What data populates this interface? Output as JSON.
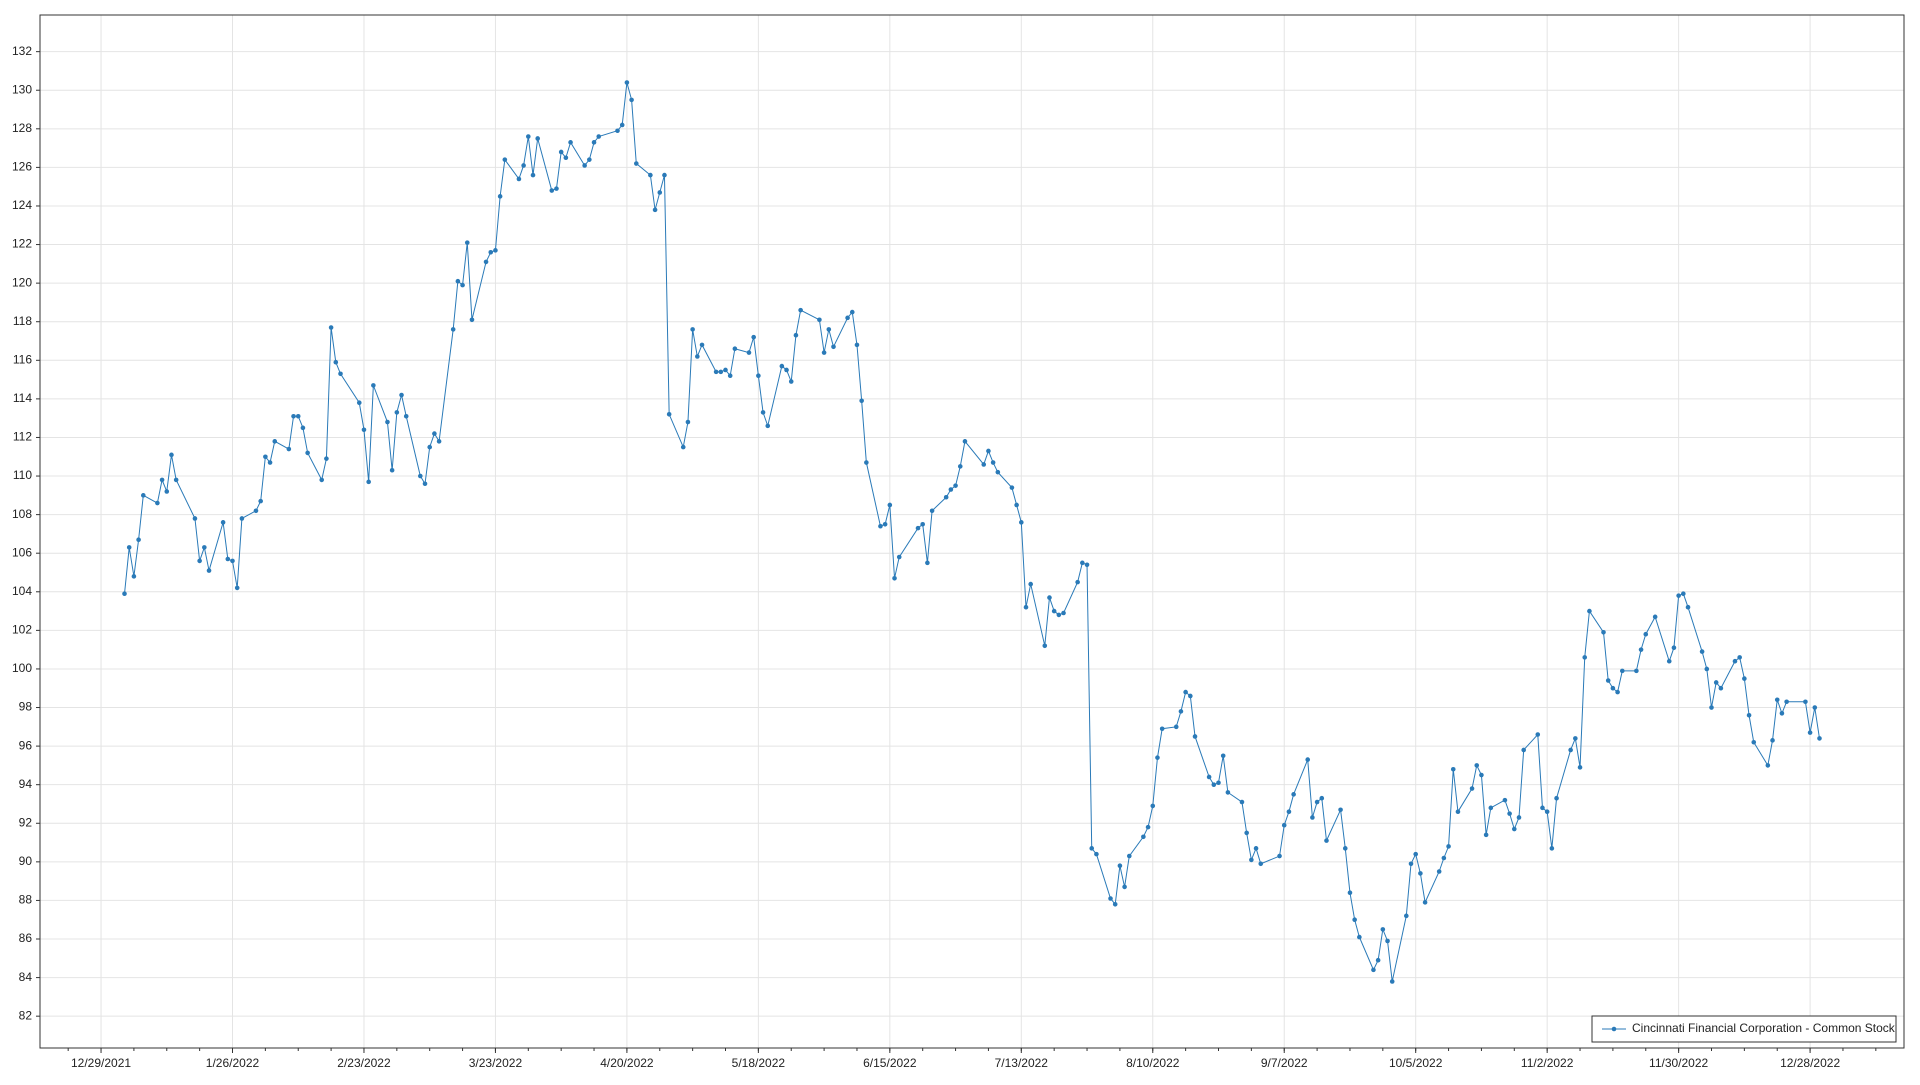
{
  "chart_data": {
    "type": "line",
    "x": [
      "1/3/2022",
      "1/4/2022",
      "1/5/2022",
      "1/6/2022",
      "1/7/2022",
      "1/10/2022",
      "1/11/2022",
      "1/12/2022",
      "1/13/2022",
      "1/14/2022",
      "1/18/2022",
      "1/19/2022",
      "1/20/2022",
      "1/21/2022",
      "1/24/2022",
      "1/25/2022",
      "1/26/2022",
      "1/27/2022",
      "1/28/2022",
      "1/31/2022",
      "2/1/2022",
      "2/2/2022",
      "2/3/2022",
      "2/4/2022",
      "2/7/2022",
      "2/8/2022",
      "2/9/2022",
      "2/10/2022",
      "2/11/2022",
      "2/14/2022",
      "2/15/2022",
      "2/16/2022",
      "2/17/2022",
      "2/18/2022",
      "2/22/2022",
      "2/23/2022",
      "2/24/2022",
      "2/25/2022",
      "2/28/2022",
      "3/1/2022",
      "3/2/2022",
      "3/3/2022",
      "3/4/2022",
      "3/7/2022",
      "3/8/2022",
      "3/9/2022",
      "3/10/2022",
      "3/11/2022",
      "3/14/2022",
      "3/15/2022",
      "3/16/2022",
      "3/17/2022",
      "3/18/2022",
      "3/21/2022",
      "3/22/2022",
      "3/23/2022",
      "3/24/2022",
      "3/25/2022",
      "3/28/2022",
      "3/29/2022",
      "3/30/2022",
      "3/31/2022",
      "4/1/2022",
      "4/4/2022",
      "4/5/2022",
      "4/6/2022",
      "4/7/2022",
      "4/8/2022",
      "4/11/2022",
      "4/12/2022",
      "4/13/2022",
      "4/14/2022",
      "4/18/2022",
      "4/19/2022",
      "4/20/2022",
      "4/21/2022",
      "4/22/2022",
      "4/25/2022",
      "4/26/2022",
      "4/27/2022",
      "4/28/2022",
      "4/29/2022",
      "5/2/2022",
      "5/3/2022",
      "5/4/2022",
      "5/5/2022",
      "5/6/2022",
      "5/9/2022",
      "5/10/2022",
      "5/11/2022",
      "5/12/2022",
      "5/13/2022",
      "5/16/2022",
      "5/17/2022",
      "5/18/2022",
      "5/19/2022",
      "5/20/2022",
      "5/23/2022",
      "5/24/2022",
      "5/25/2022",
      "5/26/2022",
      "5/27/2022",
      "5/31/2022",
      "6/1/2022",
      "6/2/2022",
      "6/3/2022",
      "6/6/2022",
      "6/7/2022",
      "6/8/2022",
      "6/9/2022",
      "6/10/2022",
      "6/13/2022",
      "6/14/2022",
      "6/15/2022",
      "6/16/2022",
      "6/17/2022",
      "6/21/2022",
      "6/22/2022",
      "6/23/2022",
      "6/24/2022",
      "6/27/2022",
      "6/28/2022",
      "6/29/2022",
      "6/30/2022",
      "7/1/2022",
      "7/5/2022",
      "7/6/2022",
      "7/7/2022",
      "7/8/2022",
      "7/11/2022",
      "7/12/2022",
      "7/13/2022",
      "7/14/2022",
      "7/15/2022",
      "7/18/2022",
      "7/19/2022",
      "7/20/2022",
      "7/21/2022",
      "7/22/2022",
      "7/25/2022",
      "7/26/2022",
      "7/27/2022",
      "7/28/2022",
      "7/29/2022",
      "8/1/2022",
      "8/2/2022",
      "8/3/2022",
      "8/4/2022",
      "8/5/2022",
      "8/8/2022",
      "8/9/2022",
      "8/10/2022",
      "8/11/2022",
      "8/12/2022",
      "8/15/2022",
      "8/16/2022",
      "8/17/2022",
      "8/18/2022",
      "8/19/2022",
      "8/22/2022",
      "8/23/2022",
      "8/24/2022",
      "8/25/2022",
      "8/26/2022",
      "8/29/2022",
      "8/30/2022",
      "8/31/2022",
      "9/1/2022",
      "9/2/2022",
      "9/6/2022",
      "9/7/2022",
      "9/8/2022",
      "9/9/2022",
      "9/12/2022",
      "9/13/2022",
      "9/14/2022",
      "9/15/2022",
      "9/16/2022",
      "9/19/2022",
      "9/20/2022",
      "9/21/2022",
      "9/22/2022",
      "9/23/2022",
      "9/26/2022",
      "9/27/2022",
      "9/28/2022",
      "9/29/2022",
      "9/30/2022",
      "10/3/2022",
      "10/4/2022",
      "10/5/2022",
      "10/6/2022",
      "10/7/2022",
      "10/10/2022",
      "10/11/2022",
      "10/12/2022",
      "10/13/2022",
      "10/14/2022",
      "10/17/2022",
      "10/18/2022",
      "10/19/2022",
      "10/20/2022",
      "10/21/2022",
      "10/24/2022",
      "10/25/2022",
      "10/26/2022",
      "10/27/2022",
      "10/28/2022",
      "10/31/2022",
      "11/1/2022",
      "11/2/2022",
      "11/3/2022",
      "11/4/2022",
      "11/7/2022",
      "11/8/2022",
      "11/9/2022",
      "11/10/2022",
      "11/11/2022",
      "11/14/2022",
      "11/15/2022",
      "11/16/2022",
      "11/17/2022",
      "11/18/2022",
      "11/21/2022",
      "11/22/2022",
      "11/23/2022",
      "11/25/2022",
      "11/28/2022",
      "11/29/2022",
      "11/30/2022",
      "12/1/2022",
      "12/2/2022",
      "12/5/2022",
      "12/6/2022",
      "12/7/2022",
      "12/8/2022",
      "12/9/2022",
      "12/12/2022",
      "12/13/2022",
      "12/14/2022",
      "12/15/2022",
      "12/16/2022",
      "12/19/2022",
      "12/20/2022",
      "12/21/2022",
      "12/22/2022",
      "12/23/2022",
      "12/27/2022",
      "12/28/2022",
      "12/29/2022",
      "12/30/2022"
    ],
    "series": [
      {
        "name": "Cincinnati Financial Corporation - Common Stock",
        "color": "#2a7ab8",
        "values": [
          103.9,
          106.3,
          104.8,
          106.7,
          109.0,
          108.6,
          109.8,
          109.2,
          111.1,
          109.8,
          107.8,
          105.6,
          106.3,
          105.1,
          107.6,
          105.7,
          105.6,
          104.2,
          107.8,
          108.2,
          108.7,
          111.0,
          110.7,
          111.8,
          111.4,
          113.1,
          113.1,
          112.5,
          111.2,
          109.8,
          110.9,
          117.7,
          115.9,
          115.3,
          113.8,
          112.4,
          109.7,
          114.7,
          112.8,
          110.3,
          113.3,
          114.2,
          113.1,
          110.0,
          109.6,
          111.5,
          112.2,
          111.8,
          117.6,
          120.1,
          119.9,
          122.1,
          118.1,
          121.1,
          121.6,
          121.7,
          124.5,
          126.4,
          125.4,
          126.1,
          127.6,
          125.6,
          127.5,
          124.8,
          124.9,
          126.8,
          126.5,
          127.3,
          126.1,
          126.4,
          127.3,
          127.6,
          127.9,
          128.2,
          130.4,
          129.5,
          126.2,
          125.6,
          123.8,
          124.7,
          125.6,
          113.2,
          111.5,
          112.8,
          117.6,
          116.2,
          116.8,
          115.4,
          115.4,
          115.5,
          115.2,
          116.6,
          116.4,
          117.2,
          115.2,
          113.3,
          112.6,
          115.7,
          115.5,
          114.9,
          117.3,
          118.6,
          118.1,
          116.4,
          117.6,
          116.7,
          118.2,
          118.5,
          116.8,
          113.9,
          110.7,
          107.4,
          107.5,
          108.5,
          104.7,
          105.8,
          107.3,
          107.5,
          105.5,
          108.2,
          108.9,
          109.3,
          109.5,
          110.5,
          111.8,
          110.6,
          111.3,
          110.7,
          110.2,
          109.4,
          108.5,
          107.6,
          103.2,
          104.4,
          101.2,
          103.7,
          103.0,
          102.8,
          102.9,
          104.5,
          105.5,
          105.4,
          90.7,
          90.4,
          88.1,
          87.8,
          89.8,
          88.7,
          90.3,
          91.3,
          91.8,
          92.9,
          95.4,
          96.9,
          97.0,
          97.8,
          98.8,
          98.6,
          96.5,
          94.4,
          94.0,
          94.1,
          95.5,
          93.6,
          93.1,
          91.5,
          90.1,
          90.7,
          89.9,
          90.3,
          91.9,
          92.6,
          93.5,
          95.3,
          92.3,
          93.1,
          93.3,
          91.1,
          92.7,
          90.7,
          88.4,
          87.0,
          86.1,
          84.4,
          84.9,
          86.5,
          85.9,
          83.8,
          87.2,
          89.9,
          90.4,
          89.4,
          87.9,
          89.5,
          90.2,
          90.8,
          94.8,
          92.6,
          93.8,
          95.0,
          94.5,
          91.4,
          92.8,
          93.2,
          92.5,
          91.7,
          92.3,
          95.8,
          96.6,
          92.8,
          92.6,
          90.7,
          93.3,
          95.8,
          96.4,
          94.9,
          100.6,
          103.0,
          101.9,
          99.4,
          99.0,
          98.8,
          99.9,
          99.9,
          101.0,
          101.8,
          102.7,
          100.4,
          101.1,
          103.8,
          103.9,
          103.2,
          100.9,
          100.0,
          98.0,
          99.3,
          99.0,
          100.4,
          100.6,
          99.5,
          97.6,
          96.2,
          95.0,
          96.3,
          98.4,
          97.7,
          98.3,
          98.3,
          96.7,
          98.0,
          96.4
        ]
      }
    ],
    "xlim": [
      "12/16/2021",
      "1/17/2023"
    ],
    "xticks": [
      "12/29/2021",
      "1/26/2022",
      "2/23/2022",
      "3/23/2022",
      "4/20/2022",
      "5/18/2022",
      "6/15/2022",
      "7/13/2022",
      "8/10/2022",
      "9/7/2022",
      "10/5/2022",
      "11/2/2022",
      "11/30/2022",
      "12/28/2022"
    ],
    "ylim": [
      80.35,
      133.9
    ],
    "yticks": [
      82,
      84,
      86,
      88,
      90,
      92,
      94,
      96,
      98,
      100,
      102,
      104,
      106,
      108,
      110,
      112,
      114,
      116,
      118,
      120,
      122,
      124,
      126,
      128,
      130,
      132
    ],
    "grid": true,
    "legend": "bottom-right"
  }
}
